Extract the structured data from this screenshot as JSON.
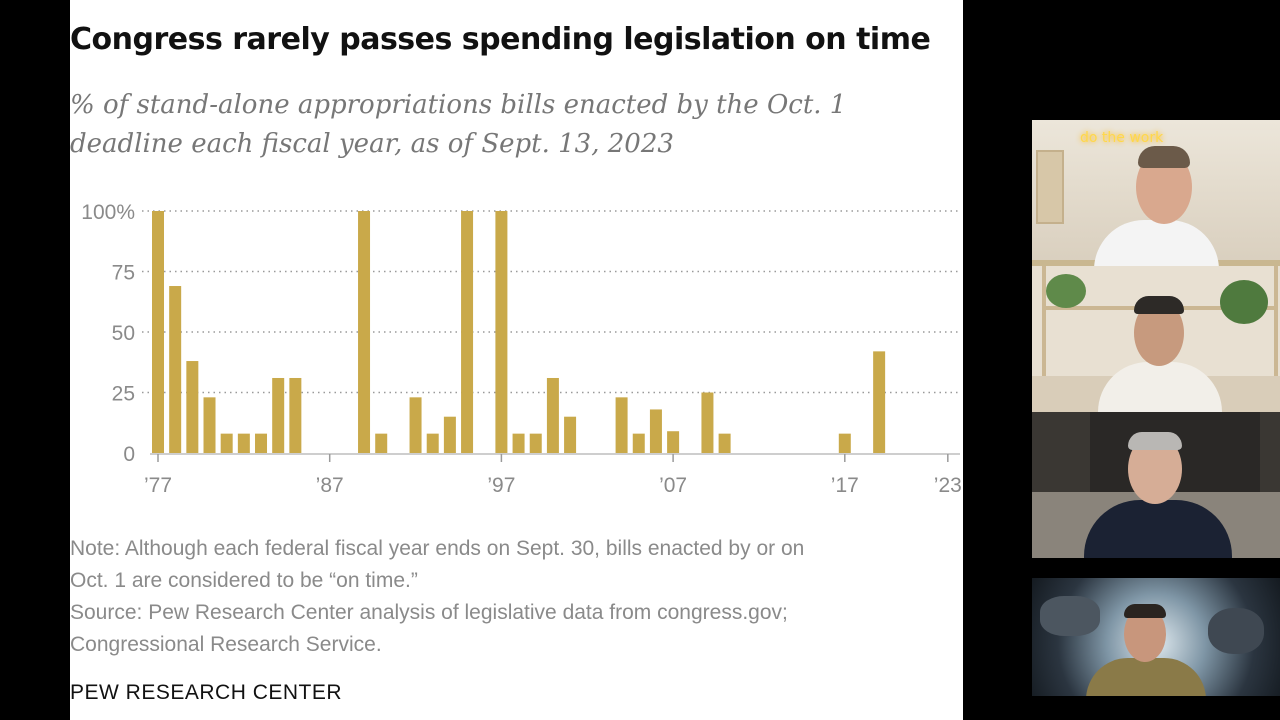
{
  "slide": {
    "title": "Congress rarely passes spending legislation on time",
    "subtitle_line1": "% of stand-alone appropriations bills enacted by the Oct. 1",
    "subtitle_line2": "deadline each fiscal year, as of Sept. 13, 2023",
    "note_line1": "Note: Although each federal fiscal year ends on Sept. 30, bills enacted by or on",
    "note_line2": "Oct. 1 are considered to be “on time.”",
    "source_line1": "Source: Pew Research Center analysis of legislative data from congress.gov;",
    "source_line2": "Congressional Research Service.",
    "brand": "PEW RESEARCH CENTER"
  },
  "chart_data": {
    "type": "bar",
    "title": "Congress rarely passes spending legislation on time",
    "subtitle": "% of stand-alone appropriations bills enacted by the Oct. 1 deadline each fiscal year, as of Sept. 13, 2023",
    "bar_color": "#c9a94a",
    "grid": true,
    "ylim": [
      0,
      100
    ],
    "xlim": [
      1977,
      2023
    ],
    "yticks": [
      0,
      25,
      50,
      75,
      100
    ],
    "ytick_labels": [
      "0",
      "25",
      "50",
      "75",
      "100%"
    ],
    "xticks": [
      1977,
      1987,
      1997,
      2007,
      2017,
      2023
    ],
    "xtick_labels": [
      "’77",
      "’87",
      "’97",
      "’07",
      "’17",
      "’23"
    ],
    "x": [
      1977,
      1978,
      1979,
      1980,
      1981,
      1982,
      1983,
      1984,
      1985,
      1986,
      1987,
      1988,
      1989,
      1990,
      1991,
      1992,
      1993,
      1994,
      1995,
      1996,
      1997,
      1998,
      1999,
      2000,
      2001,
      2002,
      2003,
      2004,
      2005,
      2006,
      2007,
      2008,
      2009,
      2010,
      2011,
      2012,
      2013,
      2014,
      2015,
      2016,
      2017,
      2018,
      2019,
      2020,
      2021,
      2022,
      2023
    ],
    "values": [
      100,
      69,
      38,
      23,
      8,
      8,
      8,
      31,
      31,
      0,
      0,
      0,
      100,
      8,
      0,
      23,
      8,
      15,
      100,
      0,
      100,
      8,
      8,
      31,
      15,
      0,
      0,
      23,
      8,
      18,
      9,
      0,
      25,
      8,
      0,
      0,
      0,
      0,
      0,
      0,
      8,
      0,
      42,
      0,
      0,
      0,
      0
    ]
  },
  "video_tiles": {
    "neon_sign": "do the work"
  }
}
